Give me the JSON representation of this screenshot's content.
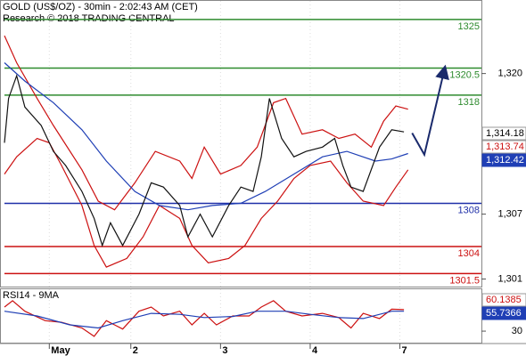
{
  "chart_data": {
    "type": "line",
    "title": "GOLD (US$/OZ) - 30min - 2:02:43 AM (CET)",
    "subtitle": "Research © 2018 TRADING CENTRAL",
    "xlim": [
      0,
      117
    ],
    "xticks": [
      {
        "value": 11,
        "label": "May"
      },
      {
        "value": 31,
        "label": "2"
      },
      {
        "value": 53,
        "label": "3"
      },
      {
        "value": 75,
        "label": "4"
      },
      {
        "value": 97,
        "label": "7"
      }
    ],
    "ylim": [
      1300.3,
      1326.8
    ],
    "yticks": [
      {
        "value": 1320,
        "label": "1,320"
      },
      {
        "value": 1307,
        "label": "1,307"
      },
      {
        "value": 1301,
        "label": "1,301"
      }
    ],
    "series": [
      {
        "color": "#cc1111",
        "x": [
          0,
          3,
          8,
          12,
          19,
          23,
          27,
          32,
          37,
          43,
          46,
          49,
          53,
          58,
          62,
          66,
          69,
          73,
          78,
          82,
          86,
          90,
          93,
          96,
          99
        ],
        "values": [
          1323.5,
          1321,
          1317.7,
          1315.2,
          1311.1,
          1308.2,
          1307.4,
          1309.9,
          1312.8,
          1311.9,
          1310.3,
          1313.2,
          1310.7,
          1311.5,
          1313.2,
          1317.3,
          1317.7,
          1314.4,
          1314.8,
          1314,
          1314.4,
          1313.2,
          1315.6,
          1317,
          1316.7
        ]
      },
      {
        "color": "#cc1111",
        "x": [
          0,
          3,
          8,
          11,
          14,
          19,
          22,
          25,
          30,
          34,
          38,
          43,
          46,
          50,
          55,
          59,
          63,
          67,
          71,
          75,
          80,
          84,
          88,
          93,
          96,
          99
        ],
        "values": [
          1310.7,
          1312.3,
          1314,
          1313.6,
          1311.5,
          1307.8,
          1304.1,
          1302.1,
          1302.9,
          1304.9,
          1307.8,
          1306.6,
          1304.1,
          1302.5,
          1302.9,
          1304.1,
          1306.6,
          1308.2,
          1310.3,
          1311.5,
          1311.9,
          1309.9,
          1308.2,
          1307.8,
          1309.5,
          1311.1
        ]
      },
      {
        "color": "#1f3fb5",
        "x": [
          0,
          5,
          12,
          19,
          25,
          32,
          38,
          45,
          51,
          58,
          64,
          71,
          78,
          84,
          91,
          95,
          99
        ],
        "values": [
          1321,
          1319.3,
          1317.3,
          1314.8,
          1311.9,
          1309.1,
          1307.8,
          1307.4,
          1307.8,
          1308,
          1309.1,
          1310.7,
          1312.3,
          1312.8,
          1311.9,
          1312.1,
          1312.6
        ]
      },
      {
        "color": "#111111",
        "x": [
          0,
          1,
          3,
          5,
          9,
          12,
          15,
          19,
          22,
          24,
          26,
          29,
          33,
          36,
          39,
          43,
          45,
          48,
          51,
          55,
          58,
          61,
          63,
          65,
          68,
          71,
          74,
          78,
          81,
          83,
          85,
          88,
          92,
          95,
          98
        ],
        "values": [
          1313.6,
          1317.7,
          1319.8,
          1316.9,
          1315.2,
          1312.8,
          1311.5,
          1309.1,
          1306.6,
          1304.1,
          1306.2,
          1304.1,
          1307,
          1309.9,
          1309.5,
          1307.8,
          1304.9,
          1307,
          1304.9,
          1307.8,
          1309.5,
          1309.1,
          1312.3,
          1317.7,
          1314,
          1312.3,
          1312.8,
          1313.2,
          1314,
          1311.5,
          1309.5,
          1309.1,
          1313.2,
          1314.8,
          1314.6
        ]
      }
    ],
    "levels": [
      {
        "value": 1325,
        "color": "#2e8b2e"
      },
      {
        "value": 1320.5,
        "color": "#2e8b2e"
      },
      {
        "value": 1318,
        "color": "#2e8b2e"
      },
      {
        "value": 1308,
        "color": "#1f2fa8"
      },
      {
        "value": 1304,
        "color": "#cc1111"
      },
      {
        "value": 1301.5,
        "color": "#cc1111"
      }
    ],
    "forecast": {
      "color": "#1a2a6c",
      "x": [
        100,
        103,
        108
      ],
      "values": [
        1314.5,
        1312.5,
        1320.5
      ]
    },
    "price_tags": [
      {
        "text": "1,314.18",
        "color": "#000000",
        "background": "#ffffff"
      },
      {
        "text": "1,313.74",
        "color": "#cc1111",
        "background": "#ffffff"
      },
      {
        "text": "1,312.42",
        "color": "#ffffff",
        "background": "#1f3fb5"
      }
    ],
    "rsi": {
      "title": "RSI14 - 9MA",
      "ylim": [
        19,
        70
      ],
      "yticks": [
        30
      ],
      "series": [
        {
          "color": "#cc1111",
          "x": [
            0,
            2,
            5,
            10,
            14,
            19,
            22,
            25,
            29,
            33,
            36,
            39,
            43,
            46,
            49,
            52,
            56,
            60,
            63,
            66,
            69,
            73,
            78,
            82,
            85,
            88,
            92,
            95,
            98
          ],
          "values": [
            53,
            59,
            49,
            40,
            38.5,
            33,
            25,
            40,
            32,
            49,
            53,
            44.5,
            49,
            36,
            47,
            36,
            44.5,
            44.5,
            53,
            59,
            49,
            44.5,
            47,
            43,
            33,
            47,
            42,
            51,
            50.5
          ]
        },
        {
          "color": "#1f3fb5",
          "x": [
            0,
            8,
            16,
            23,
            29,
            36,
            43,
            49,
            56,
            62,
            69,
            75,
            82,
            88,
            95,
            98
          ],
          "values": [
            49,
            44.5,
            36,
            33,
            40,
            47,
            46,
            43,
            44,
            49,
            49,
            46,
            43,
            42,
            49,
            49
          ]
        }
      ],
      "tags": [
        {
          "text": "60.1385",
          "color": "#cc1111",
          "background": "#ffffff"
        },
        {
          "text": "55.7366",
          "color": "#ffffff",
          "background": "#1f3fb5"
        }
      ]
    }
  }
}
